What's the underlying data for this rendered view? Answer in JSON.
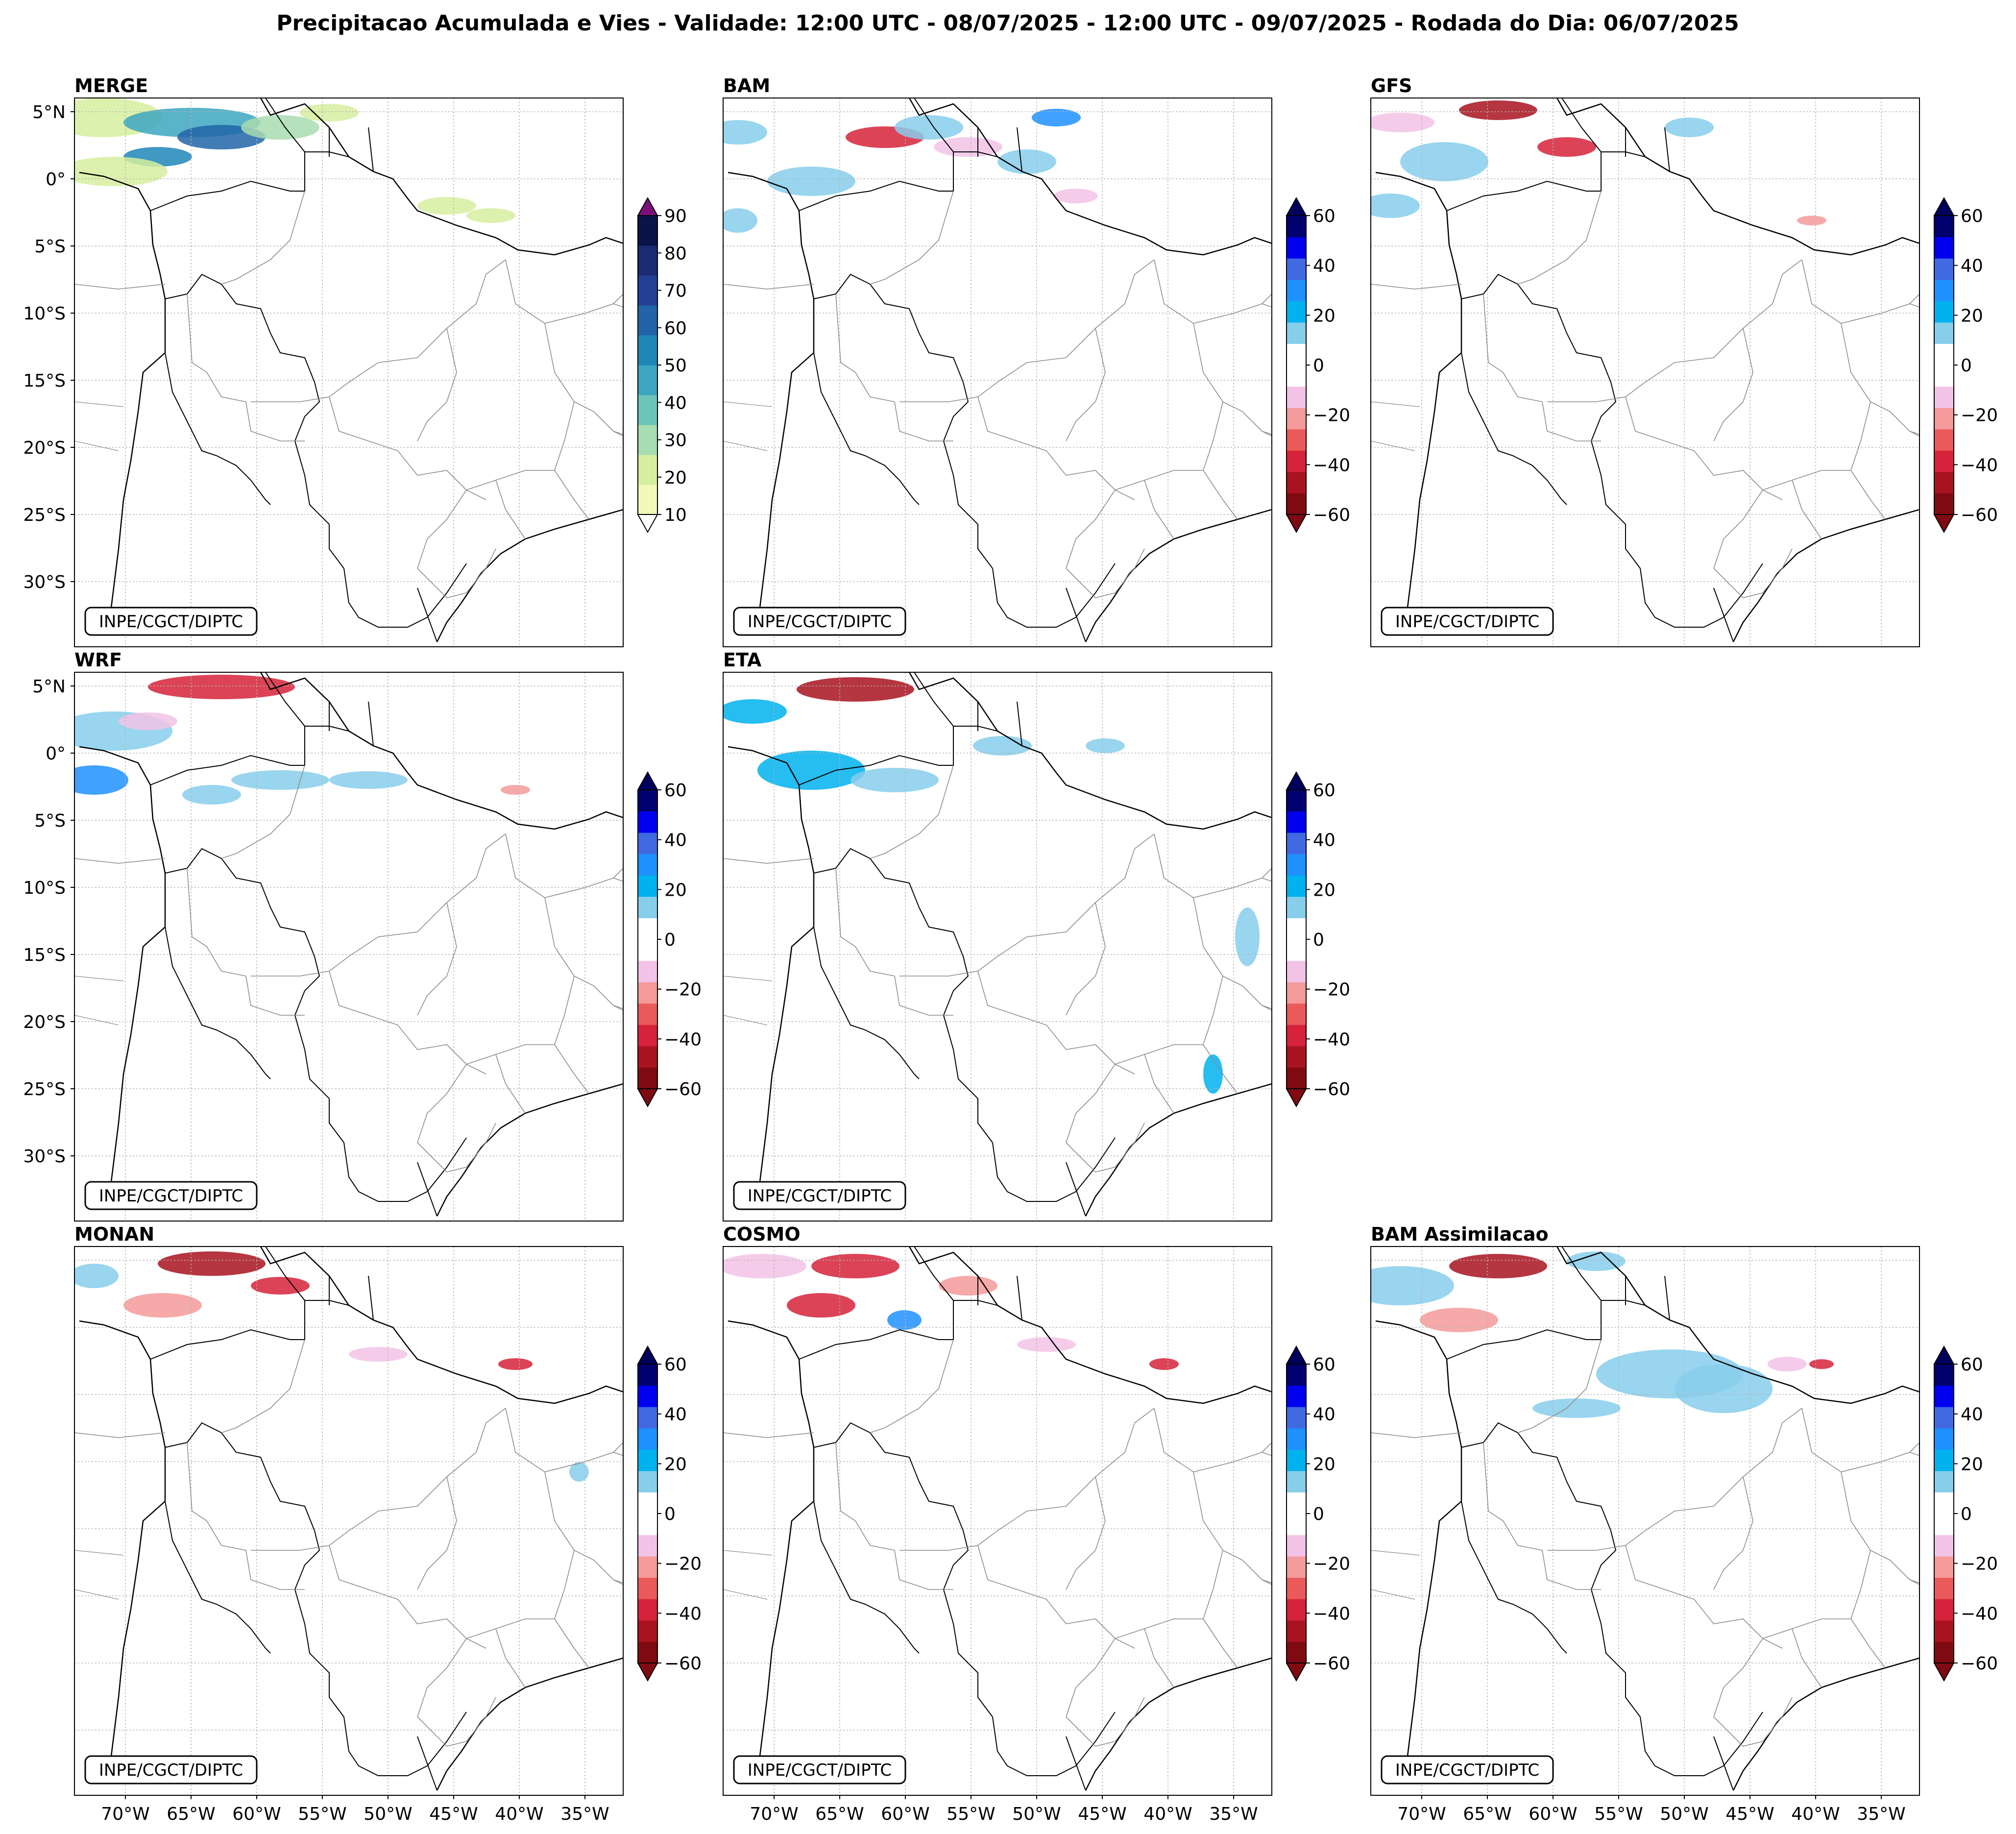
{
  "title": "Precipitacao Acumulada e Vies - Validade: 12:00 UTC - 08/07/2025 - 12:00 UTC - 09/07/2025 - Rodada do Dia: 06/07/2025",
  "credit": "INPE/CGCT/DIPTC",
  "lat_ticks": [
    "5°N",
    "0°",
    "5°S",
    "10°S",
    "15°S",
    "20°S",
    "25°S",
    "30°S"
  ],
  "lon_ticks": [
    "70°W",
    "65°W",
    "60°W",
    "55°W",
    "50°W",
    "45°W",
    "40°W",
    "35°W"
  ],
  "colors": {
    "merge": [
      "#f2f8b6",
      "#d6ee9f",
      "#a8dcb1",
      "#6cc4b9",
      "#3ca6c0",
      "#1f86b8",
      "#2165a8",
      "#233f95",
      "#1a2a73",
      "#0a1448"
    ],
    "merge_over": "#7a0f7a",
    "merge_under": "#ffffff",
    "bias": [
      "#7f0a12",
      "#a8131f",
      "#d6223a",
      "#ea5a5a",
      "#f49a9a",
      "#f2c3e6",
      "#ffffff",
      "#ffffff",
      "#87ceeb",
      "#00b2ee",
      "#1e90ff",
      "#4169e1",
      "#0000ee",
      "#00006e"
    ],
    "bias_under": "#7f0a12",
    "bias_over": "#00005c"
  },
  "merge_colorbar_ticks": [
    "10",
    "20",
    "30",
    "40",
    "50",
    "60",
    "70",
    "80",
    "90"
  ],
  "bias_colorbar_ticks": [
    "−60",
    "−40",
    "−20",
    "0",
    "20",
    "40",
    "60"
  ],
  "panels": [
    {
      "id": "merge",
      "title": "MERGE",
      "type": "precip"
    },
    {
      "id": "bam",
      "title": "BAM",
      "type": "bias"
    },
    {
      "id": "gfs",
      "title": "GFS",
      "type": "bias"
    },
    {
      "id": "wrf",
      "title": "WRF",
      "type": "bias"
    },
    {
      "id": "eta",
      "title": "ETA",
      "type": "bias"
    },
    {
      "id": "monan",
      "title": "MONAN",
      "type": "bias"
    },
    {
      "id": "cosmo",
      "title": "COSMO",
      "type": "bias"
    },
    {
      "id": "bamassim",
      "title": "BAM Assimilacao",
      "type": "bias"
    }
  ]
}
